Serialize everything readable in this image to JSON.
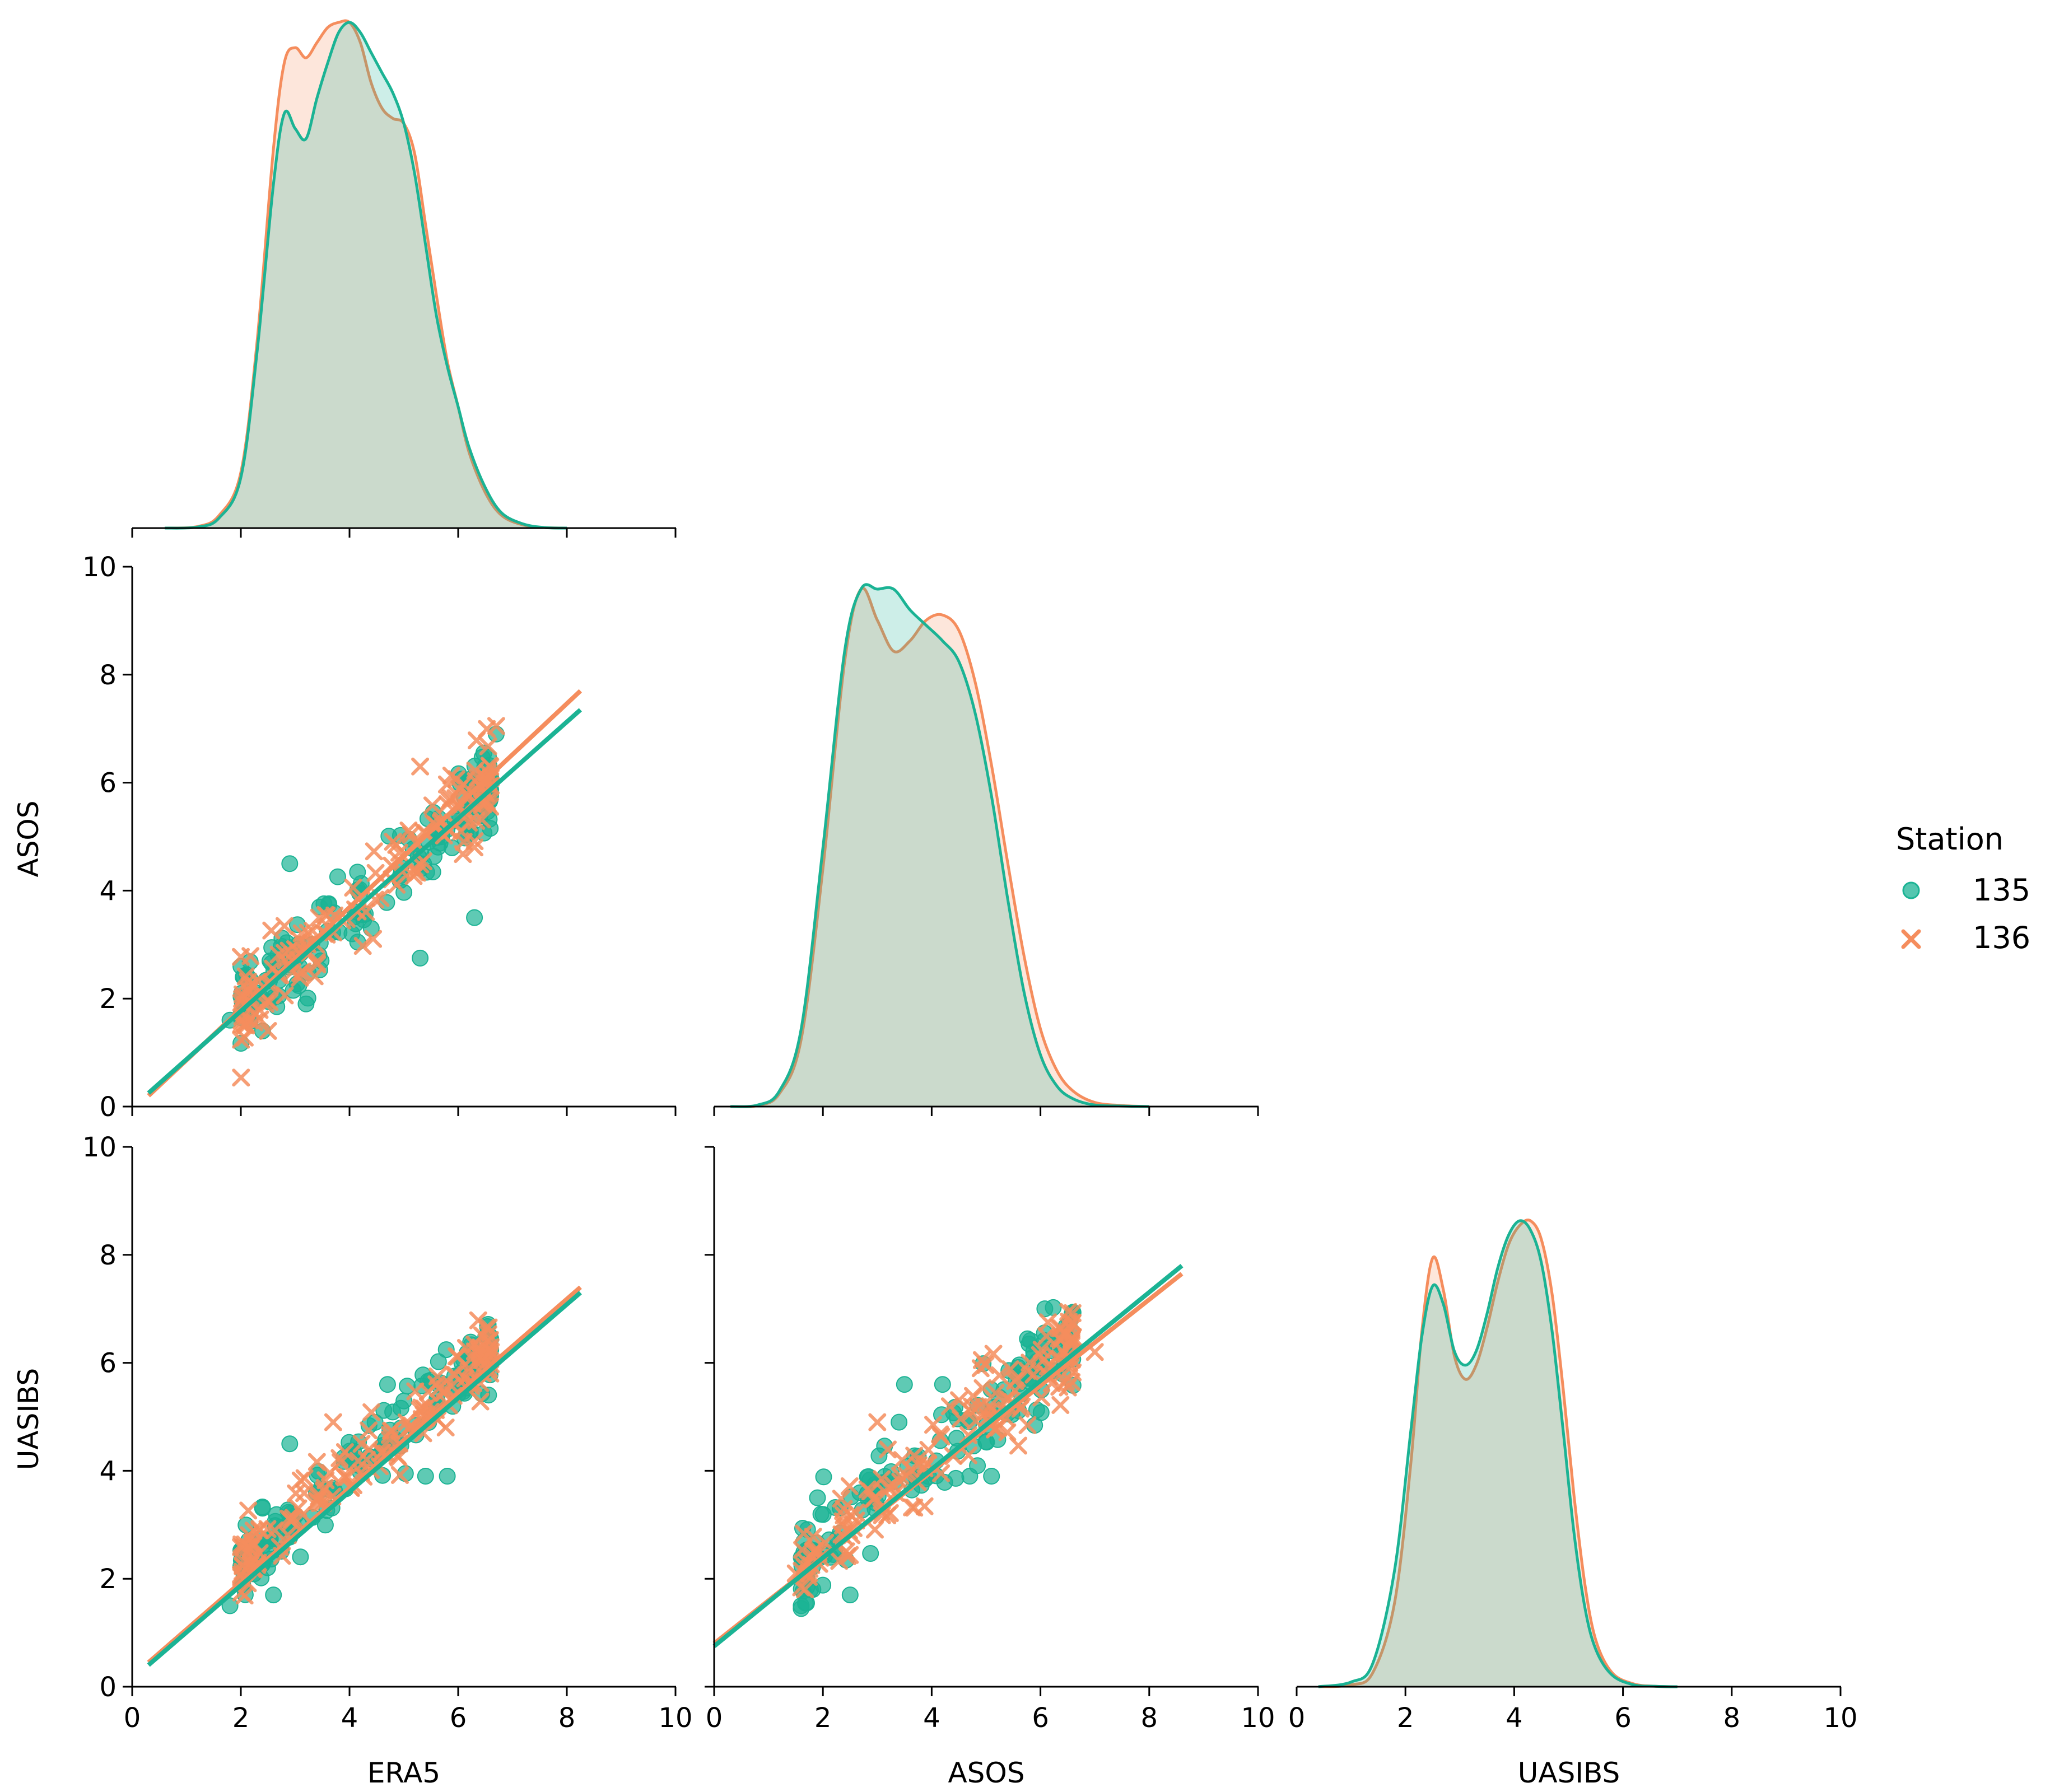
{
  "chart_data": {
    "type": "pairplot",
    "variables": [
      "ERA5",
      "ASOS",
      "UASIBS"
    ],
    "axis_range": [
      0,
      10
    ],
    "ticks": [
      0,
      2,
      4,
      6,
      8,
      10
    ],
    "tick_labels": [
      "0",
      "2",
      "4",
      "6",
      "8",
      "10"
    ],
    "legend": {
      "title": "Station",
      "placement": "right",
      "entries": [
        {
          "name": "135",
          "marker": "circle",
          "color": "#1bb394"
        },
        {
          "name": "136",
          "marker": "x",
          "color": "#f58d5d"
        }
      ]
    },
    "diagonal": [
      {
        "variable": "ERA5",
        "type": "kde",
        "series": [
          {
            "name": "135",
            "x": [
              0.6,
              1.2,
              1.6,
              2.0,
              2.3,
              2.6,
              2.8,
              3.0,
              3.2,
              3.4,
              3.6,
              3.8,
              4.0,
              4.2,
              4.4,
              4.6,
              4.8,
              5.0,
              5.2,
              5.4,
              5.6,
              5.8,
              6.0,
              6.2,
              6.5,
              6.8,
              7.2,
              7.6,
              8.0
            ],
            "y": [
              0.0,
              0.002,
              0.02,
              0.1,
              0.35,
              0.68,
              0.82,
              0.79,
              0.77,
              0.85,
              0.92,
              0.98,
              1.0,
              0.98,
              0.94,
              0.9,
              0.86,
              0.8,
              0.7,
              0.56,
              0.42,
              0.32,
              0.24,
              0.16,
              0.08,
              0.03,
              0.008,
              0.001,
              0.0
            ]
          },
          {
            "name": "136",
            "x": [
              0.6,
              1.2,
              1.6,
              2.0,
              2.3,
              2.6,
              2.8,
              3.0,
              3.2,
              3.4,
              3.6,
              3.8,
              4.0,
              4.2,
              4.4,
              4.6,
              4.8,
              5.0,
              5.2,
              5.4,
              5.6,
              5.8,
              6.0,
              6.2,
              6.5,
              6.8,
              7.2,
              7.6,
              8.0
            ],
            "y": [
              0.0,
              0.003,
              0.025,
              0.11,
              0.37,
              0.75,
              0.92,
              0.95,
              0.93,
              0.96,
              0.99,
              1.0,
              1.0,
              0.96,
              0.88,
              0.83,
              0.81,
              0.8,
              0.74,
              0.6,
              0.46,
              0.33,
              0.24,
              0.15,
              0.07,
              0.025,
              0.006,
              0.001,
              0.0
            ]
          }
        ]
      },
      {
        "variable": "ASOS",
        "type": "kde",
        "series": [
          {
            "name": "135",
            "x": [
              0.3,
              0.8,
              1.2,
              1.6,
              2.0,
              2.4,
              2.7,
              3.0,
              3.3,
              3.6,
              3.9,
              4.2,
              4.5,
              4.8,
              5.1,
              5.4,
              5.7,
              6.0,
              6.3,
              6.6,
              7.0,
              7.5,
              8.0
            ],
            "y": [
              0.0,
              0.003,
              0.03,
              0.15,
              0.5,
              0.88,
              1.0,
              1.0,
              1.0,
              0.96,
              0.93,
              0.9,
              0.86,
              0.76,
              0.6,
              0.4,
              0.22,
              0.1,
              0.04,
              0.015,
              0.003,
              0.001,
              0.0
            ]
          },
          {
            "name": "136",
            "x": [
              0.3,
              0.8,
              1.2,
              1.6,
              2.0,
              2.4,
              2.7,
              3.0,
              3.3,
              3.6,
              3.9,
              4.2,
              4.5,
              4.8,
              5.1,
              5.4,
              5.7,
              6.0,
              6.3,
              6.6,
              7.0,
              7.5,
              8.0
            ],
            "y": [
              0.0,
              0.002,
              0.025,
              0.13,
              0.46,
              0.86,
              1.0,
              0.94,
              0.88,
              0.9,
              0.94,
              0.95,
              0.92,
              0.82,
              0.66,
              0.47,
              0.29,
              0.15,
              0.07,
              0.03,
              0.008,
              0.002,
              0.0
            ]
          }
        ]
      },
      {
        "variable": "UASIBS",
        "type": "kde",
        "series": [
          {
            "name": "135",
            "x": [
              0.4,
              1.0,
              1.4,
              1.8,
              2.1,
              2.3,
              2.5,
              2.7,
              2.9,
              3.1,
              3.3,
              3.5,
              3.7,
              3.9,
              4.1,
              4.3,
              4.5,
              4.7,
              4.9,
              5.1,
              5.3,
              5.5,
              5.8,
              6.2,
              6.6,
              7.0
            ],
            "y": [
              0.0,
              0.01,
              0.05,
              0.25,
              0.55,
              0.75,
              0.86,
              0.82,
              0.72,
              0.69,
              0.72,
              0.8,
              0.9,
              0.97,
              1.0,
              0.98,
              0.91,
              0.76,
              0.55,
              0.33,
              0.17,
              0.08,
              0.025,
              0.004,
              0.001,
              0.0
            ]
          },
          {
            "name": "136",
            "x": [
              0.4,
              1.0,
              1.4,
              1.8,
              2.1,
              2.3,
              2.5,
              2.7,
              2.9,
              3.1,
              3.3,
              3.5,
              3.7,
              3.9,
              4.1,
              4.3,
              4.5,
              4.7,
              4.9,
              5.1,
              5.3,
              5.5,
              5.8,
              6.2,
              6.6,
              7.0
            ],
            "y": [
              0.0,
              0.004,
              0.03,
              0.18,
              0.48,
              0.76,
              0.92,
              0.85,
              0.71,
              0.66,
              0.69,
              0.77,
              0.87,
              0.95,
              0.99,
              1.0,
              0.96,
              0.84,
              0.64,
              0.41,
              0.22,
              0.1,
              0.03,
              0.006,
              0.001,
              0.0
            ]
          }
        ]
      }
    ],
    "scatter_panels": [
      {
        "x_var": "ERA5",
        "y_var": "ASOS",
        "fit": [
          {
            "name": "135",
            "x": [
              0.3,
              8.25
            ],
            "y": [
              0.25,
              7.35
            ]
          },
          {
            "name": "136",
            "x": [
              0.3,
              8.25
            ],
            "y": [
              0.2,
              7.7
            ]
          }
        ],
        "outliers": [
          {
            "name": "135",
            "points": [
              [
                2.9,
                4.5
              ],
              [
                5.3,
                2.75
              ],
              [
                6.3,
                3.5
              ],
              [
                6.7,
                6.9
              ],
              [
                3.2,
                1.9
              ],
              [
                2.4,
                1.4
              ],
              [
                4.4,
                3.3
              ],
              [
                1.8,
                1.6
              ]
            ]
          },
          {
            "name": "136",
            "points": [
              [
                6.7,
                7.05
              ],
              [
                5.3,
                6.3
              ],
              [
                6.3,
                4.8
              ],
              [
                2.5,
                1.4
              ]
            ]
          }
        ],
        "cloud": {
          "x_range": [
            2.0,
            6.6
          ],
          "slope": 0.92,
          "intercept": -0.05,
          "spread": 0.38
        }
      },
      {
        "x_var": "ERA5",
        "y_var": "UASIBS",
        "fit": [
          {
            "name": "135",
            "x": [
              0.3,
              8.25
            ],
            "y": [
              0.4,
              7.3
            ]
          },
          {
            "name": "136",
            "x": [
              0.3,
              8.25
            ],
            "y": [
              0.45,
              7.4
            ]
          }
        ],
        "outliers": [
          {
            "name": "135",
            "points": [
              [
                2.9,
                4.5
              ],
              [
                4.7,
                5.6
              ],
              [
                5.8,
                3.9
              ],
              [
                5.4,
                3.9
              ],
              [
                2.6,
                1.7
              ],
              [
                1.8,
                1.5
              ]
            ]
          },
          {
            "name": "136",
            "points": [
              [
                3.7,
                4.9
              ],
              [
                6.6,
                6.2
              ]
            ]
          }
        ],
        "cloud": {
          "x_range": [
            2.0,
            6.6
          ],
          "slope": 0.88,
          "intercept": 0.45,
          "spread": 0.32
        }
      },
      {
        "x_var": "ASOS",
        "y_var": "UASIBS",
        "fit": [
          {
            "name": "135",
            "x": [
              0.0,
              8.6
            ],
            "y": [
              0.75,
              7.8
            ]
          },
          {
            "name": "136",
            "x": [
              0.0,
              8.6
            ],
            "y": [
              0.8,
              7.65
            ]
          }
        ],
        "outliers": [
          {
            "name": "135",
            "points": [
              [
                3.5,
                5.6
              ],
              [
                4.2,
                5.6
              ],
              [
                1.9,
                3.5
              ],
              [
                1.6,
                1.5
              ],
              [
                2.5,
                1.7
              ],
              [
                3.4,
                4.9
              ],
              [
                4.7,
                3.9
              ],
              [
                5.1,
                3.9
              ]
            ]
          },
          {
            "name": "136",
            "points": [
              [
                4.9,
                5.9
              ],
              [
                7.0,
                6.2
              ],
              [
                1.5,
                2.1
              ],
              [
                3.0,
                4.9
              ]
            ]
          }
        ],
        "cloud": {
          "x_range": [
            1.6,
            6.6
          ],
          "slope": 0.85,
          "intercept": 0.85,
          "spread": 0.42
        }
      }
    ]
  }
}
